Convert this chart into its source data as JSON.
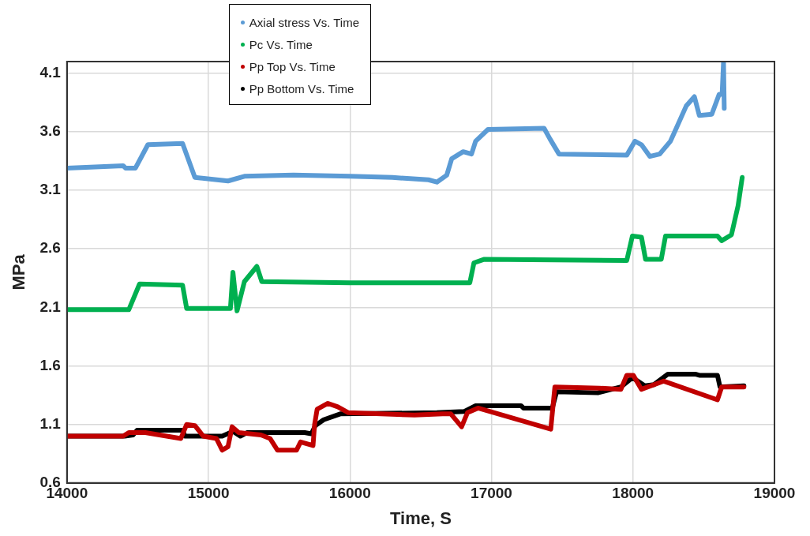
{
  "chart_data": {
    "type": "line",
    "xlabel": "Time, S",
    "ylabel": "MPa",
    "xlim": [
      14000,
      19000
    ],
    "xticks": [
      14000,
      15000,
      16000,
      17000,
      18000,
      19000
    ],
    "ylim": [
      0.6,
      4.2
    ],
    "yticks": [
      0.6,
      1.1,
      1.6,
      2.1,
      2.6,
      3.1,
      3.6,
      4.1
    ],
    "grid": true,
    "legend": "top",
    "marker": "none",
    "line_style": "solid",
    "series": [
      {
        "name": "Axial stress Vs. Time",
        "color": "#5b9bd5",
        "x": [
          14000,
          14397,
          14414,
          14484,
          14572,
          14817,
          14904,
          15138,
          15254,
          15600,
          16000,
          16300,
          16555,
          16614,
          16684,
          16719,
          16800,
          16859,
          16888,
          16975,
          17372,
          17413,
          17477,
          17956,
          18014,
          18060,
          18119,
          18189,
          18265,
          18306,
          18376,
          18434,
          18469,
          18557,
          18609,
          18630,
          18640,
          18645
        ],
        "values": [
          3.29,
          3.31,
          3.29,
          3.29,
          3.49,
          3.5,
          3.21,
          3.18,
          3.22,
          3.23,
          3.22,
          3.21,
          3.19,
          3.17,
          3.23,
          3.37,
          3.43,
          3.41,
          3.52,
          3.62,
          3.63,
          3.54,
          3.41,
          3.4,
          3.52,
          3.49,
          3.39,
          3.41,
          3.52,
          3.63,
          3.82,
          3.9,
          3.74,
          3.75,
          3.92,
          3.92,
          4.2,
          3.8
        ]
      },
      {
        "name": "Pc Vs. Time",
        "color": "#00b050",
        "x": [
          14000,
          14397,
          14437,
          14513,
          14817,
          14846,
          15155,
          15173,
          15202,
          15254,
          15342,
          15377,
          16000,
          16847,
          16876,
          16946,
          17956,
          17996,
          18060,
          18089,
          18200,
          18230,
          18597,
          18627,
          18696,
          18743,
          18772
        ],
        "values": [
          2.08,
          2.08,
          2.08,
          2.3,
          2.29,
          2.09,
          2.09,
          2.4,
          2.07,
          2.32,
          2.45,
          2.32,
          2.31,
          2.31,
          2.48,
          2.51,
          2.5,
          2.71,
          2.7,
          2.51,
          2.51,
          2.71,
          2.71,
          2.67,
          2.72,
          2.97,
          3.21
        ]
      },
      {
        "name": "Pp Top Vs. Time",
        "color": "#c00000",
        "x": [
          14000,
          14397,
          14437,
          14554,
          14805,
          14846,
          14904,
          14963,
          15056,
          15097,
          15138,
          15167,
          15214,
          15371,
          15435,
          15488,
          15622,
          15651,
          15739,
          15750,
          15768,
          15844,
          15914,
          15989,
          16456,
          16655,
          16713,
          16789,
          16830,
          16905,
          17419,
          17448,
          17763,
          17915,
          17956,
          18002,
          18060,
          18218,
          18597,
          18627,
          18784
        ],
        "values": [
          1.0,
          1.0,
          1.03,
          1.03,
          0.98,
          1.1,
          1.09,
          1.0,
          0.98,
          0.88,
          0.91,
          1.08,
          1.03,
          1.01,
          0.98,
          0.88,
          0.88,
          0.95,
          0.92,
          1.1,
          1.23,
          1.28,
          1.25,
          1.2,
          1.18,
          1.19,
          1.19,
          1.08,
          1.2,
          1.24,
          1.06,
          1.42,
          1.41,
          1.4,
          1.52,
          1.52,
          1.4,
          1.47,
          1.31,
          1.42,
          1.42
        ]
      },
      {
        "name": "Pp Bottom Vs. Time",
        "color": "#000000",
        "x": [
          14000,
          14390,
          14408,
          14467,
          14496,
          14817,
          14834,
          15097,
          15173,
          15225,
          15272,
          15680,
          15727,
          15756,
          15814,
          15931,
          16614,
          16806,
          16888,
          17209,
          17226,
          17430,
          17460,
          17751,
          17915,
          17996,
          18084,
          18148,
          18247,
          18440,
          18469,
          18597,
          18615,
          18784
        ],
        "values": [
          1.0,
          1.0,
          1.0,
          1.01,
          1.05,
          1.05,
          1.0,
          1.0,
          1.04,
          1.0,
          1.03,
          1.03,
          1.02,
          1.09,
          1.14,
          1.19,
          1.2,
          1.21,
          1.26,
          1.26,
          1.24,
          1.24,
          1.38,
          1.37,
          1.42,
          1.5,
          1.43,
          1.44,
          1.53,
          1.53,
          1.52,
          1.52,
          1.42,
          1.43
        ]
      }
    ]
  }
}
